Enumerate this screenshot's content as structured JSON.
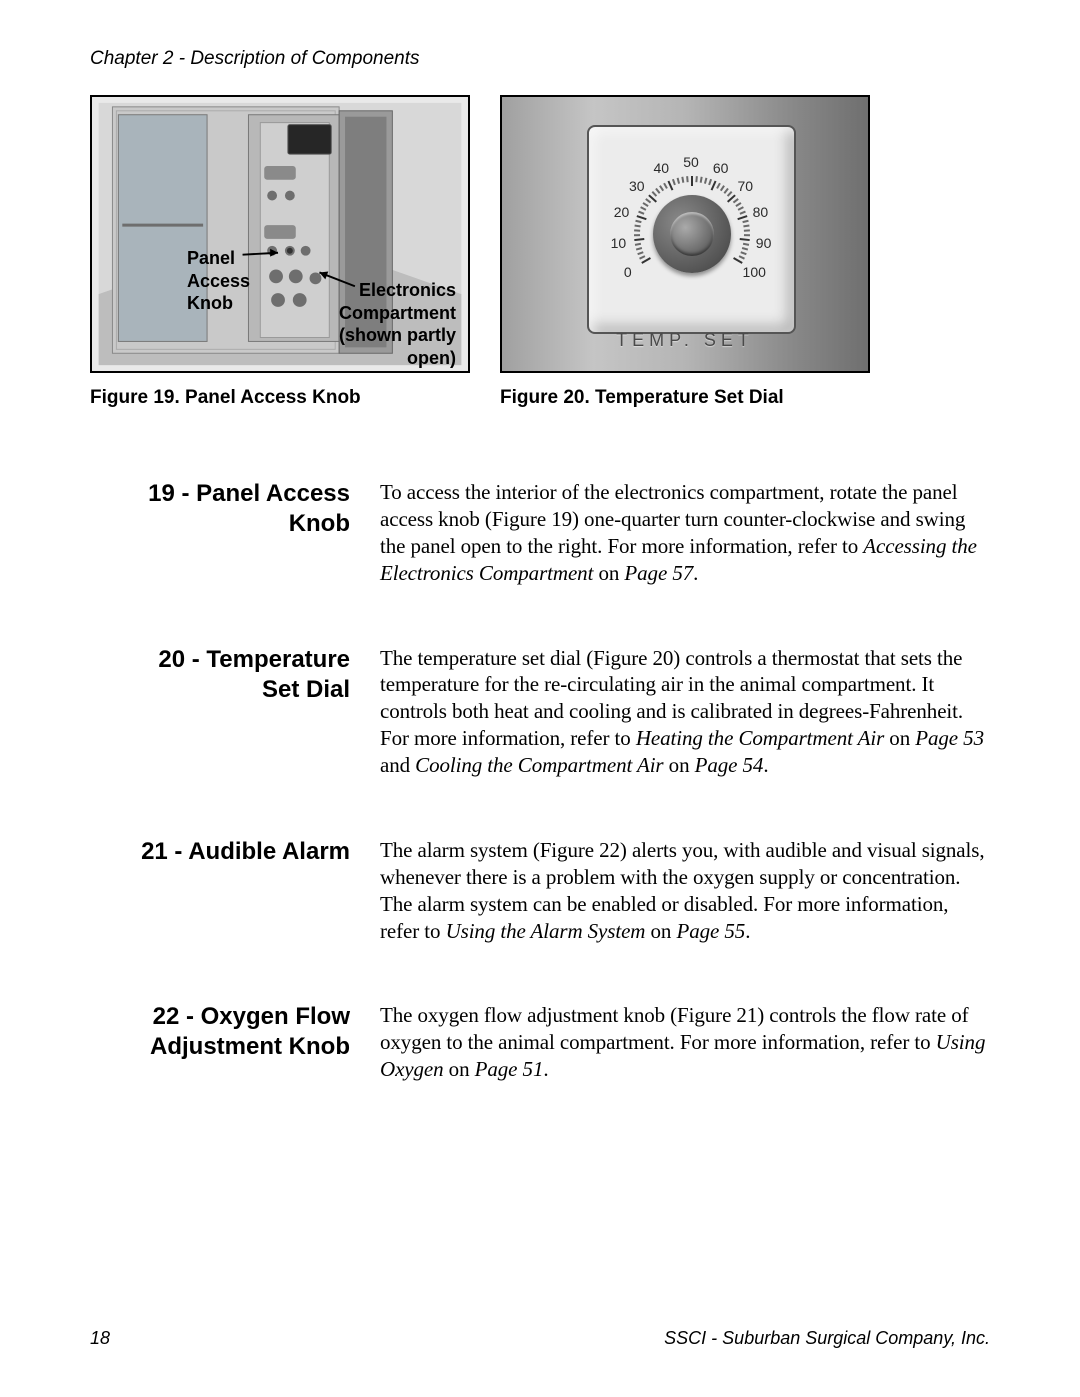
{
  "chapter_header": "Chapter 2 - Description of Components",
  "figure19": {
    "caption": "Figure 19.  Panel Access Knob",
    "label_left": "Panel\nAccess\nKnob",
    "label_right": "Electronics\nCompartment\n(shown partly\nopen)",
    "box_border_color": "#000000",
    "background": "#e9e9e9",
    "pointer_stroke": "#000000",
    "pointer_stroke_width": 2
  },
  "figure20": {
    "caption": "Figure 20.  Temperature Set Dial",
    "plate_label": "TEMP. SET",
    "dial_numbers": [
      "0",
      "10",
      "20",
      "30",
      "40",
      "50",
      "60",
      "70",
      "80",
      "90",
      "100"
    ],
    "dial_num_radius": 73,
    "dial_start_angle_deg": 210,
    "dial_end_angle_deg": -30,
    "plate_bg": "#ececec",
    "panel_bg_gradient": [
      "#a0a0a0",
      "#c5c5c5",
      "#b5b5b5",
      "#888888",
      "#6f6f6f"
    ],
    "tick_count": 51
  },
  "sections": [
    {
      "title": "19 - Panel Access Knob",
      "body_html": "To access the interior of the electronics compartment, rotate the panel access knob (Figure 19) one-quarter turn counter-clockwise and swing the panel open to the right. For more information, refer to <span class=\"ital\">Accessing the Electronics Compartment</span> on <span class=\"ital\">Page 57</span>."
    },
    {
      "title": "20 - Temperature Set Dial",
      "body_html": "The temperature set dial (Figure 20) controls a thermostat that sets the temperature for the re-circulating air in the animal compartment. It controls both heat and cooling and is calibrated in degrees-Fahrenheit. For more information, refer to <span class=\"ital\">Heating the Compartment Air</span> on <span class=\"ital\">Page 53</span> and <span class=\"ital\">Cooling the Compartment Air</span> on <span class=\"ital\">Page 54</span>."
    },
    {
      "title": "21 - Audible Alarm",
      "body_html": "The alarm system (Figure 22) alerts you, with audible and visual signals, whenever there is a problem with the oxygen supply or concentration. The alarm system can be enabled or disabled. For more information, refer to <span class=\"ital\">Using the Alarm System</span> on <span class=\"ital\">Page 55</span>."
    },
    {
      "title": "22 - Oxygen Flow Adjustment Knob",
      "body_html": "The oxygen flow adjustment knob (Figure 21) controls the flow rate of oxygen to the animal compartment. For more information, refer to <span class=\"ital\">Using Oxygen</span> on <span class=\"ital\">Page 51</span>."
    }
  ],
  "footer": {
    "page_number": "18",
    "company": "SSCI - Suburban Surgical Company, Inc."
  },
  "typography": {
    "sans": "Arial",
    "serif": "Times New Roman",
    "chapter_header_pt": 14,
    "caption_pt": 14,
    "section_title_pt": 18,
    "body_pt": 16,
    "text_color": "#000000"
  }
}
